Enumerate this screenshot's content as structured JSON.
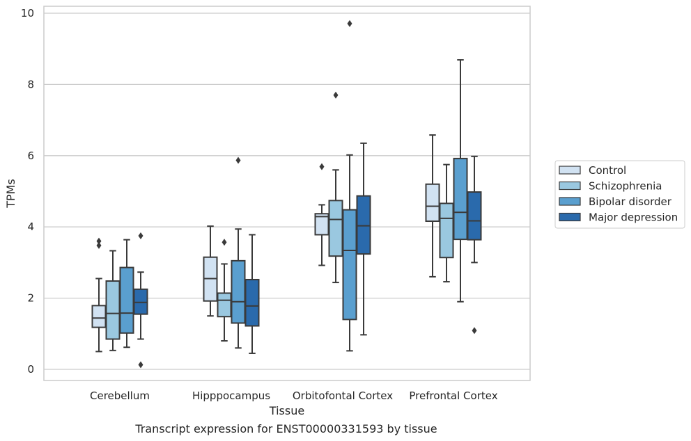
{
  "caption": "Transcript expression for ENST00000331593 by tissue",
  "chart_data": {
    "type": "boxplot",
    "xlabel": "Tissue",
    "ylabel": "TPMs",
    "ylim": [
      -0.3,
      10.2
    ],
    "yticks": [
      0,
      2,
      4,
      6,
      8,
      10
    ],
    "grid": "horizontal",
    "legend_placement": "right, outside plot",
    "categories": [
      "Cerebellum",
      "Hipppocampus",
      "Orbitofontal Cortex",
      "Prefrontal Cortex"
    ],
    "series": [
      {
        "name": "Control",
        "color": "#d1e2f2",
        "boxes": [
          {
            "whisker_low": 0.5,
            "q1": 1.18,
            "median": 1.44,
            "q3": 1.79,
            "whisker_high": 2.55,
            "outliers": [
              3.6,
              3.48
            ]
          },
          {
            "whisker_low": 1.5,
            "q1": 1.92,
            "median": 2.55,
            "q3": 3.15,
            "whisker_high": 4.02,
            "outliers": []
          },
          {
            "whisker_low": 2.92,
            "q1": 3.78,
            "median": 4.29,
            "q3": 4.37,
            "whisker_high": 4.62,
            "outliers": [
              5.69
            ]
          },
          {
            "whisker_low": 2.6,
            "q1": 4.16,
            "median": 4.58,
            "q3": 5.2,
            "whisker_high": 6.58,
            "outliers": []
          }
        ]
      },
      {
        "name": "Schizophrenia",
        "color": "#9ac8e0",
        "boxes": [
          {
            "whisker_low": 0.53,
            "q1": 0.85,
            "median": 1.57,
            "q3": 2.48,
            "whisker_high": 3.33,
            "outliers": []
          },
          {
            "whisker_low": 0.8,
            "q1": 1.48,
            "median": 1.94,
            "q3": 2.14,
            "whisker_high": 2.96,
            "outliers": [
              3.57
            ]
          },
          {
            "whisker_low": 2.44,
            "q1": 3.18,
            "median": 4.21,
            "q3": 4.74,
            "whisker_high": 5.6,
            "outliers": [
              7.7
            ]
          },
          {
            "whisker_low": 2.46,
            "q1": 3.14,
            "median": 4.24,
            "q3": 4.66,
            "whisker_high": 5.75,
            "outliers": []
          }
        ]
      },
      {
        "name": "Bipolar disorder",
        "color": "#5a9fcf",
        "boxes": [
          {
            "whisker_low": 0.62,
            "q1": 1.02,
            "median": 1.58,
            "q3": 2.86,
            "whisker_high": 3.64,
            "outliers": []
          },
          {
            "whisker_low": 0.6,
            "q1": 1.3,
            "median": 1.9,
            "q3": 3.05,
            "whisker_high": 3.94,
            "outliers": [
              5.87
            ]
          },
          {
            "whisker_low": 0.52,
            "q1": 1.4,
            "median": 3.34,
            "q3": 4.48,
            "whisker_high": 6.02,
            "outliers": [
              9.71
            ]
          },
          {
            "whisker_low": 1.9,
            "q1": 3.65,
            "median": 4.41,
            "q3": 5.92,
            "whisker_high": 8.69,
            "outliers": []
          }
        ]
      },
      {
        "name": "Major depression",
        "color": "#2a6aac",
        "boxes": [
          {
            "whisker_low": 0.85,
            "q1": 1.55,
            "median": 1.88,
            "q3": 2.25,
            "whisker_high": 2.73,
            "outliers": [
              3.75,
              0.13
            ]
          },
          {
            "whisker_low": 0.45,
            "q1": 1.22,
            "median": 1.78,
            "q3": 2.52,
            "whisker_high": 3.78,
            "outliers": []
          },
          {
            "whisker_low": 0.97,
            "q1": 3.24,
            "median": 4.03,
            "q3": 4.87,
            "whisker_high": 6.35,
            "outliers": []
          },
          {
            "whisker_low": 3.0,
            "q1": 3.64,
            "median": 4.17,
            "q3": 4.98,
            "whisker_high": 5.98,
            "outliers": [
              1.09
            ]
          }
        ]
      }
    ]
  }
}
